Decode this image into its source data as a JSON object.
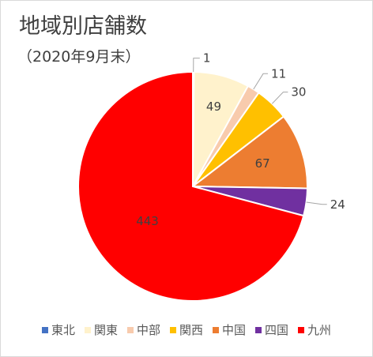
{
  "chart_data": {
    "type": "pie",
    "title": "地域別店舗数",
    "subtitle": "（2020年9月末）",
    "categories": [
      "東北",
      "関東",
      "中部",
      "関西",
      "中国",
      "四国",
      "九州"
    ],
    "values": [
      1,
      49,
      11,
      30,
      67,
      24,
      443
    ],
    "colors": [
      "#4472C4",
      "#FFF2CC",
      "#F8CBAD",
      "#FFC000",
      "#ED7D31",
      "#7030A0",
      "#FF0000"
    ],
    "data_label_color": "#404040",
    "start_angle_deg": 0,
    "direction": "clockwise",
    "legend_position": "bottom"
  }
}
